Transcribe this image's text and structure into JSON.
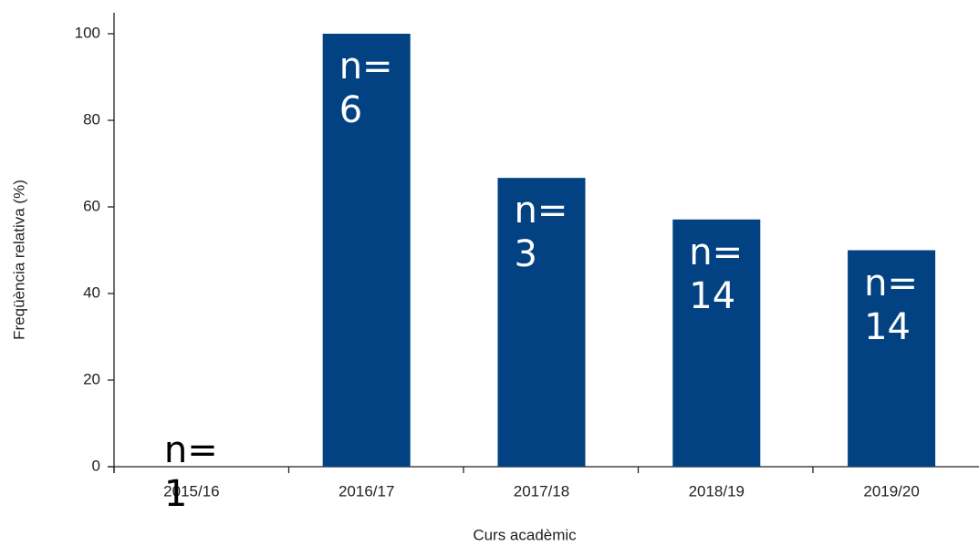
{
  "chart_data": {
    "type": "bar",
    "categories": [
      "2015/16",
      "2016/17",
      "2017/18",
      "2018/19",
      "2019/20"
    ],
    "values": [
      0,
      100,
      66.7,
      57.1,
      50
    ],
    "annotations": [
      "n= 1",
      "n= 6",
      "n= 3",
      "n= 14",
      "n= 14"
    ],
    "color": "#024283",
    "xlabel": "Curs acadèmic",
    "ylabel": "Freqüència relativa (%)",
    "ylim": [
      0,
      100
    ],
    "yticks": [
      0,
      20,
      40,
      60,
      80,
      100
    ],
    "grid": false
  }
}
